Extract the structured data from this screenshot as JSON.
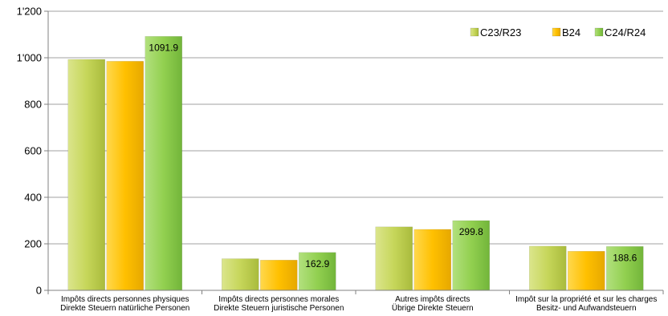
{
  "chart_data": {
    "type": "bar",
    "categories": [
      [
        "Impôts directs personnes physiques",
        "Direkte Steuern natürliche Personen"
      ],
      [
        "Impôts directs personnes morales",
        "Direkte Steuern juristische Personen"
      ],
      [
        "Autres impôts directs",
        "Übrige Direkte Steuern"
      ],
      [
        "Impôt sur la propriété et sur les charges",
        "Besitz- und Aufwandsteuern"
      ]
    ],
    "series": [
      {
        "name": "C23/R23",
        "values": [
          993,
          136,
          273,
          190
        ],
        "color": "#c6d65a",
        "data_labels": [
          null,
          null,
          null,
          null
        ]
      },
      {
        "name": "B24",
        "values": [
          985,
          130,
          262,
          168
        ],
        "color": "#ffc000",
        "data_labels": [
          null,
          null,
          null,
          null
        ]
      },
      {
        "name": "C24/R24",
        "values": [
          1091.9,
          162.9,
          299.8,
          188.6
        ],
        "color": "#92d050",
        "data_labels": [
          "1091.9",
          "162.9",
          "299.8",
          "188.6"
        ]
      }
    ],
    "ylim": [
      0,
      1200
    ],
    "yticks": [
      0,
      200,
      400,
      600,
      800,
      1000,
      1200
    ],
    "ytick_labels": [
      "0",
      "200",
      "400",
      "600",
      "800",
      "1'000",
      "1'200"
    ],
    "grid": true,
    "legend_position": "top-right"
  }
}
